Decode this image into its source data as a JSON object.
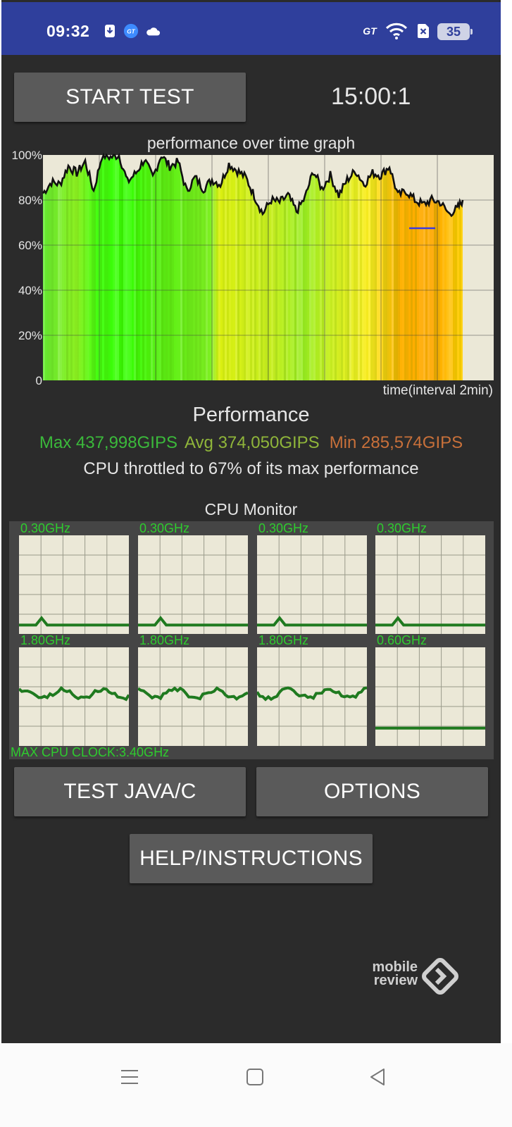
{
  "status_bar": {
    "time": "09:32",
    "icons": [
      "download-icon",
      "gt-app-icon",
      "cloud-icon",
      "gt-mode-icon",
      "wifi-icon",
      "no-sim-icon"
    ],
    "gt_mode_label": "GT",
    "battery_level": "35"
  },
  "controls": {
    "start_test_label": "START TEST",
    "timer": "15:00:1"
  },
  "graph": {
    "title": "performance over time graph",
    "y_ticks": [
      "100%",
      "80%",
      "60%",
      "40%",
      "20%",
      "0"
    ],
    "x_label": "time(interval 2min)"
  },
  "chart_data": {
    "type": "area",
    "title": "performance over time graph",
    "xlabel": "time(interval 2min)",
    "ylabel": "",
    "ylim": [
      0,
      100
    ],
    "x_range_minutes": [
      0,
      16
    ],
    "grid": true,
    "series": [
      {
        "x": [
          0,
          0.3,
          0.6,
          0.9,
          1.2,
          1.5,
          1.8,
          2.1,
          2.4,
          2.7,
          3.0,
          3.3,
          3.6,
          3.9,
          4.2,
          4.5,
          4.8,
          5.1,
          5.4,
          5.7,
          6.0,
          6.3,
          6.6,
          6.9,
          7.2,
          7.5,
          7.8,
          8.1,
          8.4,
          8.7,
          9.0,
          9.3,
          9.6,
          9.9,
          10.2,
          10.5,
          10.8,
          11.1,
          11.4,
          11.7,
          12.0,
          12.3,
          12.6,
          12.9,
          13.2,
          13.5,
          13.8,
          14.1,
          14.4,
          14.7,
          14.9
        ],
        "values": [
          83,
          88,
          87,
          95,
          92,
          97,
          84,
          100,
          99,
          100,
          88,
          92,
          98,
          90,
          100,
          95,
          97,
          84,
          90,
          85,
          89,
          87,
          96,
          93,
          90,
          82,
          74,
          80,
          79,
          82,
          75,
          81,
          93,
          85,
          91,
          82,
          89,
          93,
          87,
          92,
          91,
          95,
          82,
          84,
          80,
          78,
          80,
          79,
          74,
          76,
          80
        ]
      }
    ]
  },
  "performance": {
    "heading": "Performance",
    "max": "Max 437,998GIPS",
    "avg": "Avg 374,050GIPS",
    "min": "Min 285,574GIPS",
    "throttle": "CPU throttled to 67% of its max performance"
  },
  "cpu_monitor": {
    "title": "CPU Monitor",
    "cores": [
      {
        "freq": "0.30GHz",
        "level": 0.09
      },
      {
        "freq": "0.30GHz",
        "level": 0.09
      },
      {
        "freq": "0.30GHz",
        "level": 0.09
      },
      {
        "freq": "0.30GHz",
        "level": 0.09
      },
      {
        "freq": "1.80GHz",
        "level": 0.53
      },
      {
        "freq": "1.80GHz",
        "level": 0.53
      },
      {
        "freq": "1.80GHz",
        "level": 0.53
      },
      {
        "freq": "0.60GHz",
        "level": 0.18
      }
    ],
    "max_clock": "MAX CPU CLOCK:3.40GHz"
  },
  "buttons": {
    "test_java": "TEST JAVA/C",
    "options": "OPTIONS",
    "help": "HELP/INSTRUCTIONS"
  },
  "watermark": {
    "line1": "mobile",
    "line2": "review"
  },
  "nav": [
    "menu-icon",
    "home-icon",
    "back-icon"
  ]
}
